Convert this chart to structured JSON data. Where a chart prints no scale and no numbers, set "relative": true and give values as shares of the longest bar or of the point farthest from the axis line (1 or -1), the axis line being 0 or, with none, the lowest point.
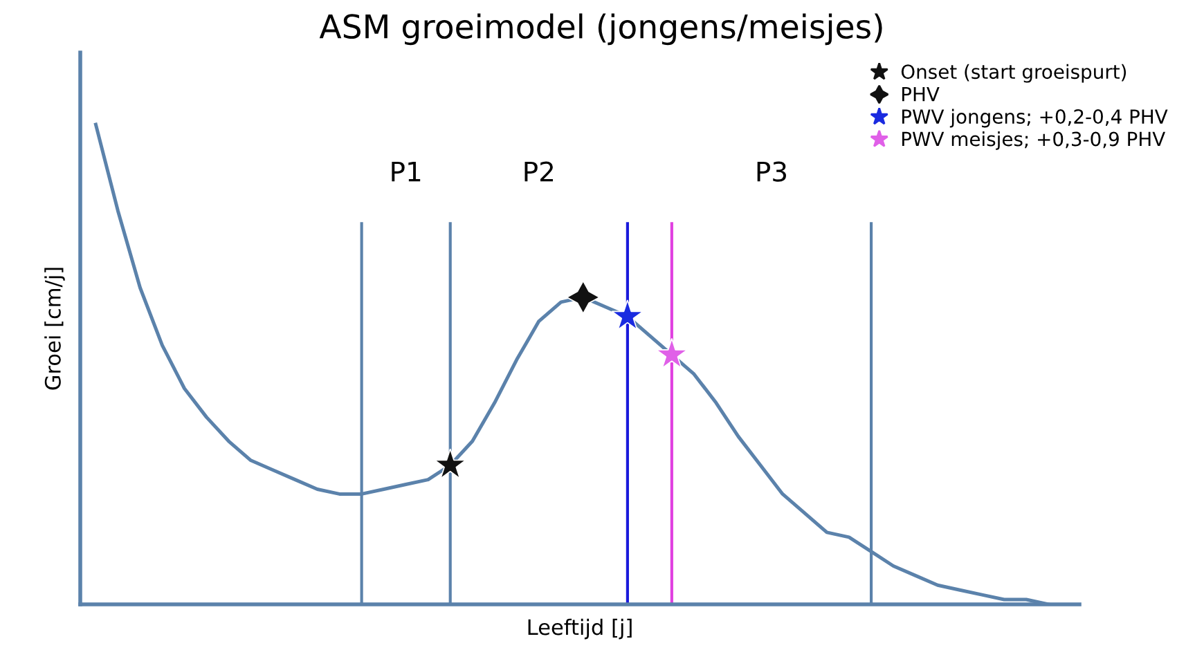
{
  "chart_data": {
    "type": "line",
    "title": "ASM groeimodel (jongens/meisjes)",
    "xlabel": "Leeftijd [j]",
    "ylabel": "Groei [cm/j]",
    "relative": true,
    "legend": "top right",
    "categories": [
      null,
      null,
      null,
      null,
      null,
      null,
      null,
      null,
      null,
      null,
      null,
      null,
      null,
      null,
      null,
      null,
      null,
      null,
      null,
      null,
      null,
      null,
      null,
      null,
      null,
      null,
      null,
      null,
      null,
      null,
      null,
      null,
      null,
      null,
      null,
      null,
      null,
      null,
      null,
      null,
      null,
      null,
      null,
      null
    ],
    "series": [
      {
        "color": "#5b82ab",
        "values": [
          1.0,
          0.82,
          0.66,
          0.54,
          0.45,
          0.39,
          0.34,
          0.3,
          0.28,
          0.26,
          0.24,
          0.23,
          0.23,
          0.24,
          0.25,
          0.26,
          0.29,
          0.34,
          0.42,
          0.51,
          0.59,
          0.63,
          0.64,
          0.62,
          0.6,
          0.56,
          0.52,
          0.48,
          0.42,
          0.35,
          0.29,
          0.23,
          0.19,
          0.15,
          0.14,
          0.11,
          0.08,
          0.06,
          0.04,
          0.03,
          0.02,
          0.01,
          0.01,
          0.0
        ]
      },
      {
        "type": "line",
        "name": "Onset (start groeispurt)",
        "color": "#111111",
        "marker": "star",
        "values": [
          null,
          null,
          null,
          null,
          null,
          null,
          null,
          null,
          null,
          null,
          null,
          null,
          null,
          null,
          null,
          null,
          0.29,
          null,
          null,
          null,
          null,
          null,
          null,
          null,
          null,
          null,
          null,
          null,
          null,
          null,
          null,
          null,
          null,
          null,
          null,
          null,
          null,
          null,
          null,
          null,
          null,
          null,
          null,
          null
        ]
      },
      {
        "type": "line",
        "name": "PHV",
        "color": "#111111",
        "marker": "cross",
        "values": [
          null,
          null,
          null,
          null,
          null,
          null,
          null,
          null,
          null,
          null,
          null,
          null,
          null,
          null,
          null,
          null,
          null,
          null,
          null,
          null,
          null,
          null,
          0.64,
          null,
          null,
          null,
          null,
          null,
          null,
          null,
          null,
          null,
          null,
          null,
          null,
          null,
          null,
          null,
          null,
          null,
          null,
          null,
          null,
          null
        ]
      },
      {
        "type": "line",
        "name": "PWV jongens; +0,2-0,4 PHV",
        "color": "#1a2be0",
        "marker": "star",
        "values": [
          null,
          null,
          null,
          null,
          null,
          null,
          null,
          null,
          null,
          null,
          null,
          null,
          null,
          null,
          null,
          null,
          null,
          null,
          null,
          null,
          null,
          null,
          null,
          null,
          0.6,
          null,
          null,
          null,
          null,
          null,
          null,
          null,
          null,
          null,
          null,
          null,
          null,
          null,
          null,
          null,
          null,
          null,
          null,
          null
        ]
      },
      {
        "type": "line",
        "name": "PWV meisjes; +0,3-0,9 PHV",
        "color": "#e060e8",
        "marker": "star",
        "values": [
          null,
          null,
          null,
          null,
          null,
          null,
          null,
          null,
          null,
          null,
          null,
          null,
          null,
          null,
          null,
          null,
          null,
          null,
          null,
          null,
          null,
          null,
          null,
          null,
          null,
          null,
          0.52,
          null,
          null,
          null,
          null,
          null,
          null,
          null,
          null,
          null,
          null,
          null,
          null,
          null,
          null,
          null,
          null,
          null
        ]
      }
    ],
    "annotations": [
      "P1",
      "P2",
      "P3"
    ]
  }
}
